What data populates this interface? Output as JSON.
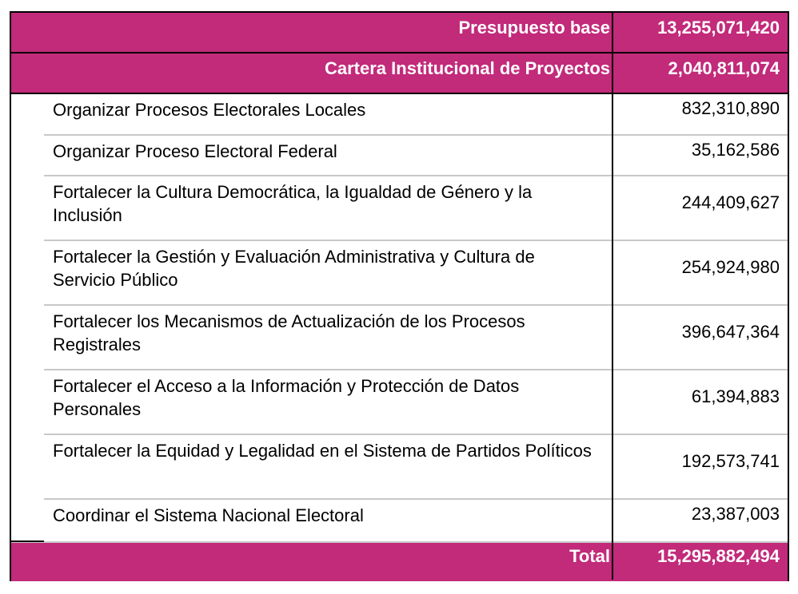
{
  "header": {
    "label": "Presupuesto base",
    "value": "13,255,071,420"
  },
  "subheader": {
    "label": "Cartera Institucional de Proyectos",
    "value": "2,040,811,074"
  },
  "rows": [
    {
      "label": "Organizar Procesos Electorales Locales",
      "value": "832,310,890"
    },
    {
      "label": "Organizar Proceso Electoral Federal",
      "value": "35,162,586"
    },
    {
      "label": "Fortalecer la Cultura Democrática, la Igualdad de Género y la Inclusión",
      "value": "244,409,627"
    },
    {
      "label": "Fortalecer la Gestión y Evaluación Administrativa y Cultura de Servicio Público",
      "value": "254,924,980"
    },
    {
      "label": "Fortalecer los Mecanismos de Actualización de los Procesos Registrales",
      "value": "396,647,364"
    },
    {
      "label": "Fortalecer el Acceso a la Información y Protección de Datos Personales",
      "value": "61,394,883"
    },
    {
      "label": "Fortalecer la Equidad y Legalidad en el Sistema de Partidos Políticos",
      "value": "192,573,741"
    },
    {
      "label": "Coordinar el Sistema Nacional Electoral",
      "value": "23,387,003"
    }
  ],
  "total": {
    "label": "Total",
    "value": "15,295,882,494"
  },
  "colors": {
    "header_bg": "#C22A7A",
    "header_text": "#FFFFFF",
    "separator": "#C8C8C8"
  }
}
